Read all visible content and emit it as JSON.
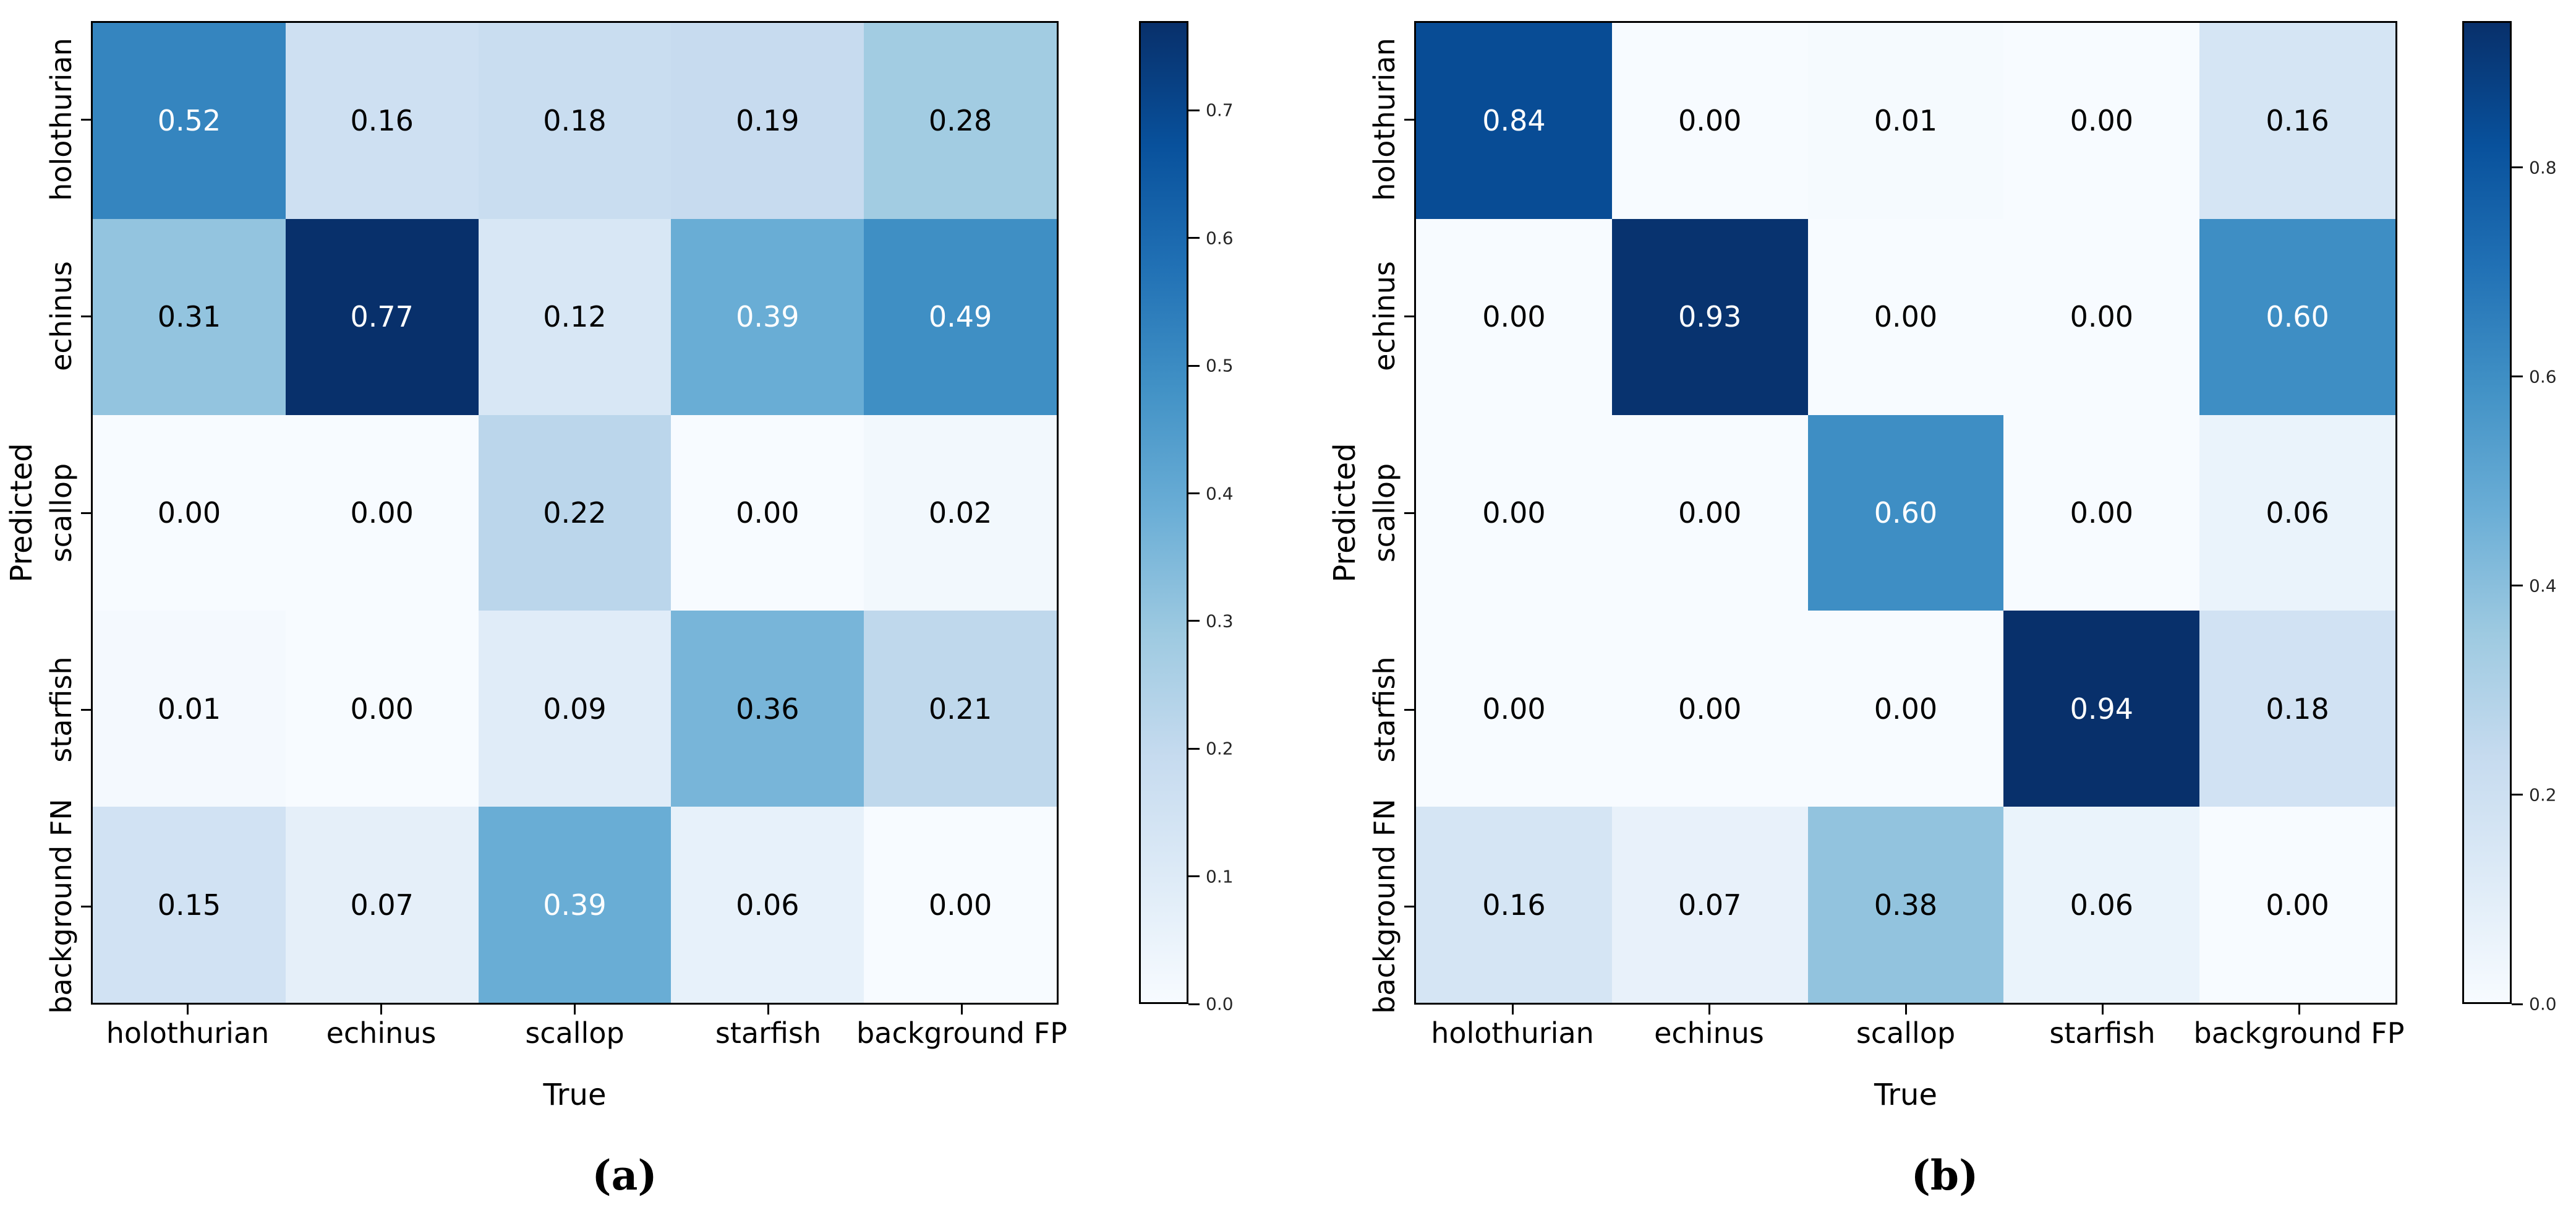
{
  "figure": {
    "background": "#ffffff",
    "colormap_name": "Blues",
    "colormap_blues_anchors": [
      "#f7fbff",
      "#deebf7",
      "#c6dbef",
      "#9ecae1",
      "#6baed6",
      "#4292c6",
      "#2171b5",
      "#08519c",
      "#08306b"
    ],
    "text_colors": {
      "on_dark": "#ffffff",
      "on_light": "#000000"
    },
    "border_color": "#000000"
  },
  "chart_data": [
    {
      "type": "heatmap",
      "caption": "(a)",
      "xlabel": "True",
      "ylabel": "Predicted",
      "x_categories": [
        "holothurian",
        "echinus",
        "scallop",
        "starfish",
        "background FP"
      ],
      "y_categories": [
        "holothurian",
        "echinus",
        "scallop",
        "starfish",
        "background FN"
      ],
      "values": [
        [
          0.52,
          0.16,
          0.18,
          0.19,
          0.28
        ],
        [
          0.31,
          0.77,
          0.12,
          0.39,
          0.49
        ],
        [
          0.0,
          0.0,
          0.22,
          0.0,
          0.02
        ],
        [
          0.01,
          0.0,
          0.09,
          0.36,
          0.21
        ],
        [
          0.15,
          0.07,
          0.39,
          0.06,
          0.0
        ]
      ],
      "cell_labels": [
        [
          "0.52",
          "0.16",
          "0.18",
          "0.19",
          "0.28"
        ],
        [
          "0.31",
          "0.77",
          "0.12",
          "0.39",
          "0.49"
        ],
        [
          "0.00",
          "0.00",
          "0.22",
          "0.00",
          "0.02"
        ],
        [
          "0.01",
          "0.00",
          "0.09",
          "0.36",
          "0.21"
        ],
        [
          "0.15",
          "0.07",
          "0.39",
          "0.06",
          "0.00"
        ]
      ],
      "vmin": 0.0,
      "vmax": 0.77,
      "colormap": "Blues",
      "grid": false,
      "legend_position": "right-colorbar",
      "colorbar_ticks": [
        "0.0",
        "0.1",
        "0.2",
        "0.3",
        "0.4",
        "0.5",
        "0.6",
        "0.7"
      ],
      "colorbar_tick_values": [
        0.0,
        0.1,
        0.2,
        0.3,
        0.4,
        0.5,
        0.6,
        0.7
      ]
    },
    {
      "type": "heatmap",
      "caption": "(b)",
      "xlabel": "True",
      "ylabel": "Predicted",
      "x_categories": [
        "holothurian",
        "echinus",
        "scallop",
        "starfish",
        "background FP"
      ],
      "y_categories": [
        "holothurian",
        "echinus",
        "scallop",
        "starfish",
        "background FN"
      ],
      "values": [
        [
          0.84,
          0.0,
          0.01,
          0.0,
          0.16
        ],
        [
          0.0,
          0.93,
          0.0,
          0.0,
          0.6
        ],
        [
          0.0,
          0.0,
          0.6,
          0.0,
          0.06
        ],
        [
          0.0,
          0.0,
          0.0,
          0.94,
          0.18
        ],
        [
          0.16,
          0.07,
          0.38,
          0.06,
          0.0
        ]
      ],
      "cell_labels": [
        [
          "0.84",
          "0.00",
          "0.01",
          "0.00",
          "0.16"
        ],
        [
          "0.00",
          "0.93",
          "0.00",
          "0.00",
          "0.60"
        ],
        [
          "0.00",
          "0.00",
          "0.60",
          "0.00",
          "0.06"
        ],
        [
          "0.00",
          "0.00",
          "0.00",
          "0.94",
          "0.18"
        ],
        [
          "0.16",
          "0.07",
          "0.38",
          "0.06",
          "0.00"
        ]
      ],
      "vmin": 0.0,
      "vmax": 0.94,
      "colormap": "Blues",
      "grid": false,
      "legend_position": "right-colorbar",
      "colorbar_ticks": [
        "0.0",
        "0.2",
        "0.4",
        "0.6",
        "0.8"
      ],
      "colorbar_tick_values": [
        0.0,
        0.2,
        0.4,
        0.6,
        0.8
      ]
    }
  ]
}
